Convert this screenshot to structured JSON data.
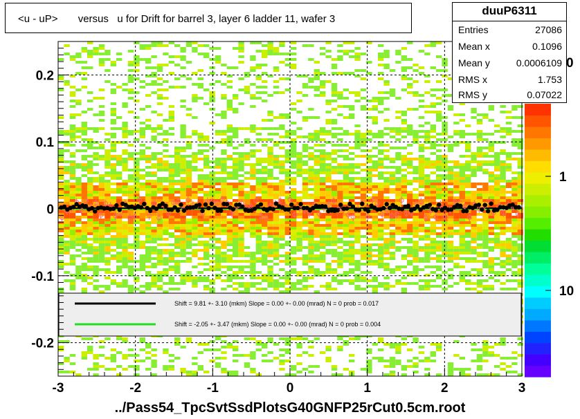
{
  "title": "<u - uP>       versus   u for Drift for barrel 3, layer 6 ladder 11, wafer 3",
  "footer": "../Pass54_TpcSvtSsdPlotsG40GNFP25rCut0.5cm.root",
  "stats": {
    "name": "duuP6311",
    "rows": [
      {
        "label": "Entries",
        "value": "27086"
      },
      {
        "label": "Mean x",
        "value": "0.1096"
      },
      {
        "label": "Mean y",
        "value": "0.0006109"
      },
      {
        "label": "RMS x",
        "value": "1.753"
      },
      {
        "label": "RMS y",
        "value": "0.07022"
      }
    ]
  },
  "colors": {
    "series_black": "#000000",
    "series_green": "#22dd22",
    "profile_red": "#ff6666",
    "legend_bg": "#eeeeee"
  },
  "chart_data": {
    "type": "heatmap",
    "xlim": [
      -3,
      3
    ],
    "ylim": [
      -0.25,
      0.25
    ],
    "x_ticks": [
      -3,
      -2,
      -1,
      0,
      1,
      2,
      3
    ],
    "x_tick_labels": [
      "-3",
      "-2",
      "-1",
      "0",
      "1",
      "2",
      "3"
    ],
    "y_ticks": [
      -0.2,
      -0.1,
      0,
      0.1,
      0.2
    ],
    "y_tick_labels": [
      "-0.2",
      "-0.1",
      "0",
      "0.1",
      "0.2"
    ],
    "grid": true,
    "color_scale_labels": [
      "1",
      "10"
    ],
    "color_scale_partial_label": "0",
    "legend": [
      {
        "color": "#000000",
        "text": "Shift =    9.81 +- 3.10 (mkm) Slope =    0.00 +- 0.00 (mrad)  N = 0 prob = 0.017"
      },
      {
        "color": "#22dd22",
        "text": "Shift =   -2.05 +- 3.47 (mkm) Slope =    0.00 +- 0.00 (mrad)  N = 0 prob = 0.004"
      }
    ],
    "fit_lines": [
      {
        "name": "",
        "y_at_xmin": 0.00098,
        "y_at_xmax": 0.00098
      },
      {
        "name": "",
        "y_at_xmin": -0.0002,
        "y_at_xmax": -0.0002
      }
    ]
  }
}
